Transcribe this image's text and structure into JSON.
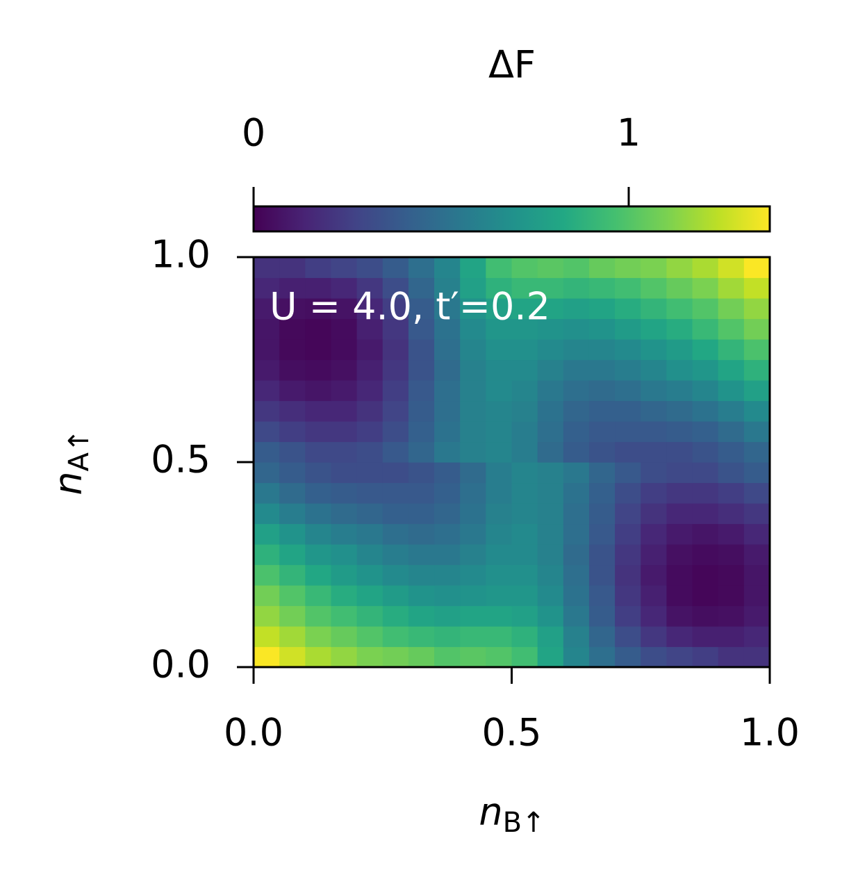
{
  "chart_data": {
    "type": "heatmap",
    "annotation": "U = 4.0, t′=0.2",
    "xlabel": "nB↑",
    "ylabel": "nA↑",
    "xlim": [
      0,
      1
    ],
    "ylim": [
      0,
      1
    ],
    "xticks": [
      {
        "value": 0,
        "label": "0.0"
      },
      {
        "value": 0.5,
        "label": "0.5"
      },
      {
        "value": 1,
        "label": "1.0"
      }
    ],
    "yticks": [
      {
        "value": 0,
        "label": "0.0"
      },
      {
        "value": 0.5,
        "label": "0.5"
      },
      {
        "value": 1,
        "label": "1.0"
      }
    ],
    "colorbar_label": "ΔF",
    "clim": [
      0,
      1.376
    ],
    "cticks": [
      0,
      1
    ],
    "colormap": "viridis",
    "z": [
      [
        1.37,
        1.28,
        1.2,
        1.15,
        1.1,
        1.08,
        1.05,
        1.0,
        1.02,
        1.0,
        0.95,
        0.8,
        0.62,
        0.5,
        0.4,
        0.32,
        0.28,
        0.25,
        0.2,
        0.2
      ],
      [
        1.25,
        1.18,
        1.1,
        1.05,
        1.0,
        0.95,
        0.92,
        0.9,
        0.92,
        0.92,
        0.88,
        0.78,
        0.6,
        0.45,
        0.32,
        0.22,
        0.15,
        0.12,
        0.12,
        0.15
      ],
      [
        1.15,
        1.08,
        1.0,
        0.95,
        0.9,
        0.85,
        0.8,
        0.78,
        0.8,
        0.8,
        0.78,
        0.7,
        0.55,
        0.4,
        0.25,
        0.15,
        0.07,
        0.05,
        0.06,
        0.1
      ],
      [
        1.08,
        1.0,
        0.92,
        0.85,
        0.8,
        0.75,
        0.7,
        0.68,
        0.7,
        0.72,
        0.72,
        0.65,
        0.52,
        0.38,
        0.22,
        0.12,
        0.04,
        0.02,
        0.03,
        0.08
      ],
      [
        0.98,
        0.9,
        0.82,
        0.75,
        0.7,
        0.65,
        0.62,
        0.62,
        0.65,
        0.68,
        0.68,
        0.62,
        0.5,
        0.35,
        0.2,
        0.1,
        0.04,
        0.02,
        0.03,
        0.08
      ],
      [
        0.88,
        0.8,
        0.72,
        0.68,
        0.62,
        0.58,
        0.55,
        0.55,
        0.6,
        0.65,
        0.65,
        0.6,
        0.48,
        0.35,
        0.22,
        0.12,
        0.06,
        0.04,
        0.05,
        0.1
      ],
      [
        0.78,
        0.7,
        0.62,
        0.58,
        0.55,
        0.5,
        0.48,
        0.5,
        0.55,
        0.62,
        0.65,
        0.6,
        0.5,
        0.38,
        0.25,
        0.15,
        0.1,
        0.08,
        0.1,
        0.15
      ],
      [
        0.65,
        0.58,
        0.52,
        0.48,
        0.45,
        0.42,
        0.42,
        0.45,
        0.52,
        0.6,
        0.62,
        0.6,
        0.5,
        0.4,
        0.28,
        0.2,
        0.15,
        0.15,
        0.18,
        0.22
      ],
      [
        0.55,
        0.48,
        0.42,
        0.4,
        0.38,
        0.38,
        0.38,
        0.42,
        0.5,
        0.58,
        0.62,
        0.6,
        0.52,
        0.42,
        0.32,
        0.25,
        0.22,
        0.22,
        0.25,
        0.3
      ],
      [
        0.45,
        0.4,
        0.35,
        0.32,
        0.32,
        0.32,
        0.35,
        0.4,
        0.48,
        0.58,
        0.62,
        0.6,
        0.55,
        0.45,
        0.38,
        0.32,
        0.3,
        0.3,
        0.35,
        0.4
      ],
      [
        0.4,
        0.35,
        0.3,
        0.3,
        0.32,
        0.38,
        0.45,
        0.55,
        0.6,
        0.62,
        0.58,
        0.48,
        0.4,
        0.35,
        0.32,
        0.32,
        0.32,
        0.35,
        0.4,
        0.45
      ],
      [
        0.3,
        0.25,
        0.22,
        0.22,
        0.25,
        0.32,
        0.42,
        0.52,
        0.6,
        0.62,
        0.58,
        0.5,
        0.42,
        0.38,
        0.38,
        0.38,
        0.4,
        0.42,
        0.48,
        0.55
      ],
      [
        0.22,
        0.18,
        0.15,
        0.15,
        0.2,
        0.28,
        0.4,
        0.5,
        0.6,
        0.62,
        0.6,
        0.52,
        0.45,
        0.42,
        0.42,
        0.45,
        0.48,
        0.52,
        0.58,
        0.65
      ],
      [
        0.15,
        0.1,
        0.08,
        0.1,
        0.15,
        0.25,
        0.38,
        0.5,
        0.6,
        0.65,
        0.62,
        0.55,
        0.5,
        0.48,
        0.5,
        0.55,
        0.58,
        0.62,
        0.7,
        0.78
      ],
      [
        0.1,
        0.05,
        0.04,
        0.06,
        0.12,
        0.22,
        0.35,
        0.48,
        0.6,
        0.65,
        0.65,
        0.6,
        0.55,
        0.55,
        0.58,
        0.62,
        0.68,
        0.72,
        0.8,
        0.88
      ],
      [
        0.08,
        0.03,
        0.02,
        0.04,
        0.1,
        0.2,
        0.35,
        0.5,
        0.62,
        0.68,
        0.68,
        0.65,
        0.62,
        0.62,
        0.65,
        0.7,
        0.75,
        0.82,
        0.9,
        0.98
      ],
      [
        0.08,
        0.03,
        0.02,
        0.04,
        0.12,
        0.22,
        0.38,
        0.52,
        0.65,
        0.72,
        0.72,
        0.7,
        0.68,
        0.7,
        0.75,
        0.8,
        0.85,
        0.92,
        1.0,
        1.08
      ],
      [
        0.1,
        0.06,
        0.05,
        0.07,
        0.15,
        0.25,
        0.4,
        0.55,
        0.7,
        0.78,
        0.8,
        0.8,
        0.78,
        0.8,
        0.85,
        0.9,
        0.95,
        1.0,
        1.08,
        1.15
      ],
      [
        0.15,
        0.12,
        0.12,
        0.15,
        0.22,
        0.32,
        0.45,
        0.6,
        0.78,
        0.88,
        0.92,
        0.92,
        0.9,
        0.92,
        0.95,
        1.0,
        1.05,
        1.1,
        1.18,
        1.25
      ],
      [
        0.2,
        0.2,
        0.25,
        0.28,
        0.32,
        0.4,
        0.5,
        0.62,
        0.8,
        0.95,
        1.0,
        1.02,
        1.0,
        1.05,
        1.08,
        1.1,
        1.15,
        1.2,
        1.28,
        1.37
      ]
    ]
  }
}
